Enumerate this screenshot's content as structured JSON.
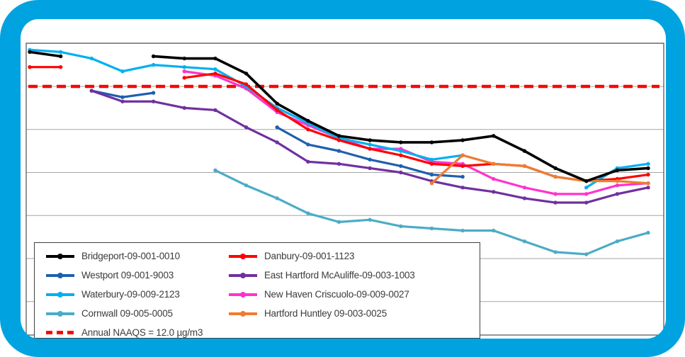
{
  "frame_color": "#00A3E0",
  "chart_data": {
    "type": "line",
    "title": "",
    "x": {
      "labels_visible": false,
      "count": 21
    },
    "y_axis": {
      "labels_visible": false,
      "units": "µg/m3",
      "gridline_values": [
        14,
        12,
        10,
        8,
        6,
        4,
        2
      ],
      "grid": true
    },
    "legend_position": "bottom-left-inside",
    "reference_line": {
      "label": "Annual NAAQS = 12.0 µg/m3",
      "value": 12.0,
      "color": "#FF0000",
      "style": "dashed"
    },
    "series": [
      {
        "key": "bridgeport",
        "name": "Bridgeport-09-001-0010",
        "color": "#000000",
        "values": [
          13.6,
          13.4,
          null,
          null,
          13.4,
          13.3,
          13.3,
          12.6,
          11.2,
          10.4,
          9.7,
          9.5,
          9.4,
          9.4,
          9.5,
          9.7,
          9.0,
          8.2,
          7.6,
          8.1,
          8.2
        ]
      },
      {
        "key": "danbury",
        "name": "Danbury-09-001-1123",
        "color": "#FF0000",
        "values": [
          12.9,
          12.9,
          null,
          null,
          null,
          12.4,
          12.6,
          12.1,
          10.9,
          10.0,
          9.5,
          9.1,
          8.8,
          8.4,
          8.3,
          8.4,
          8.3,
          7.8,
          7.6,
          7.7,
          7.9
        ]
      },
      {
        "key": "westport",
        "name": "Westport 09-001-9003",
        "color": "#1F5FAE",
        "values": [
          null,
          null,
          11.8,
          11.5,
          11.7,
          null,
          null,
          null,
          10.1,
          9.3,
          9.0,
          8.6,
          8.3,
          7.9,
          7.8,
          null,
          null,
          null,
          null,
          null,
          null
        ]
      },
      {
        "key": "east-hartford-mcauliffe",
        "name": "East Hartford McAuliffe-09-003-1003",
        "color": "#7030A0",
        "values": [
          null,
          null,
          11.8,
          11.3,
          11.3,
          11.0,
          10.9,
          10.1,
          9.4,
          8.5,
          8.4,
          8.2,
          8.0,
          7.6,
          7.3,
          7.1,
          6.8,
          6.6,
          6.6,
          7.0,
          7.3
        ]
      },
      {
        "key": "waterbury",
        "name": "Waterbury-09-009-2123",
        "color": "#00B0F0",
        "values": [
          13.7,
          13.6,
          13.3,
          12.7,
          13.0,
          12.9,
          12.8,
          12.0,
          11.0,
          10.3,
          9.6,
          9.3,
          9.0,
          8.6,
          8.8,
          null,
          null,
          null,
          7.3,
          8.2,
          8.4
        ]
      },
      {
        "key": "new-haven-criscuolo",
        "name": "New Haven Criscuolo-09-009-0027",
        "color": "#FF33CC",
        "values": [
          null,
          null,
          null,
          null,
          null,
          12.7,
          12.5,
          11.9,
          10.8,
          10.2,
          9.6,
          9.1,
          9.1,
          8.5,
          8.4,
          7.7,
          7.3,
          7.0,
          7.0,
          7.4,
          7.5
        ]
      },
      {
        "key": "cornwall",
        "name": "Cornwall 09-005-0005",
        "color": "#4BACC6",
        "values": [
          null,
          null,
          null,
          null,
          null,
          null,
          8.1,
          7.4,
          6.8,
          6.1,
          5.7,
          5.8,
          5.5,
          5.4,
          5.3,
          5.3,
          4.8,
          4.3,
          4.2,
          4.8,
          5.2
        ]
      },
      {
        "key": "hartford-huntley",
        "name": "Hartford Huntley 09-003-0025",
        "color": "#ED7D31",
        "values": [
          null,
          null,
          null,
          null,
          null,
          null,
          null,
          null,
          null,
          null,
          null,
          null,
          null,
          7.5,
          8.8,
          8.4,
          8.3,
          7.8,
          7.6,
          7.6,
          7.5
        ]
      }
    ]
  }
}
